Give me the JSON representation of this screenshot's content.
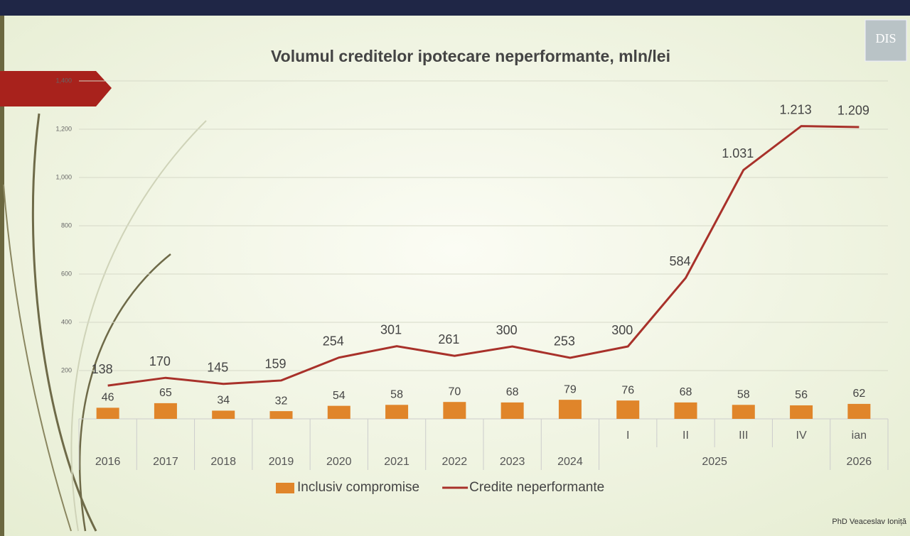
{
  "chart_data": {
    "type": "bar-line",
    "title": "Volumul creditelor ipotecare neperformante, mln/lei",
    "categories": [
      "2016",
      "2017",
      "2018",
      "2019",
      "2020",
      "2021",
      "2022",
      "2023",
      "2024",
      "I",
      "II",
      "III",
      "IV",
      "ian"
    ],
    "category_groups": [
      {
        "label": "2025",
        "members": [
          "I",
          "II",
          "III",
          "IV"
        ]
      },
      {
        "label": "2026",
        "members": [
          "ian"
        ]
      }
    ],
    "series": [
      {
        "name": "Inclusiv compromise",
        "type": "bar",
        "color": "#e0852a",
        "values": [
          46,
          65,
          34,
          32,
          54,
          58,
          70,
          68,
          79,
          76,
          68,
          58,
          56,
          62
        ]
      },
      {
        "name": "Credite neperformante",
        "type": "line",
        "color": "#a8312a",
        "values": [
          138,
          170,
          145,
          159,
          254,
          301,
          261,
          300,
          253,
          300,
          584,
          1031,
          1213,
          1209
        ],
        "value_labels": [
          "138",
          "170",
          "145",
          "159",
          "254",
          "301",
          "261",
          "300",
          "253",
          "300",
          "584",
          "1.031",
          "1.213",
          "1.209"
        ]
      }
    ],
    "ylim": [
      0,
      1400
    ],
    "yticks": [
      200,
      400,
      600,
      800,
      {
        "value": 1000,
        "label": "1,000"
      },
      {
        "value": 1200,
        "label": "1,200"
      },
      {
        "value": 1400,
        "label": "1,400"
      }
    ],
    "grid": true,
    "legend": "bottom"
  },
  "footer": "PhD Veaceslav Ioniță",
  "logo": "DIS"
}
